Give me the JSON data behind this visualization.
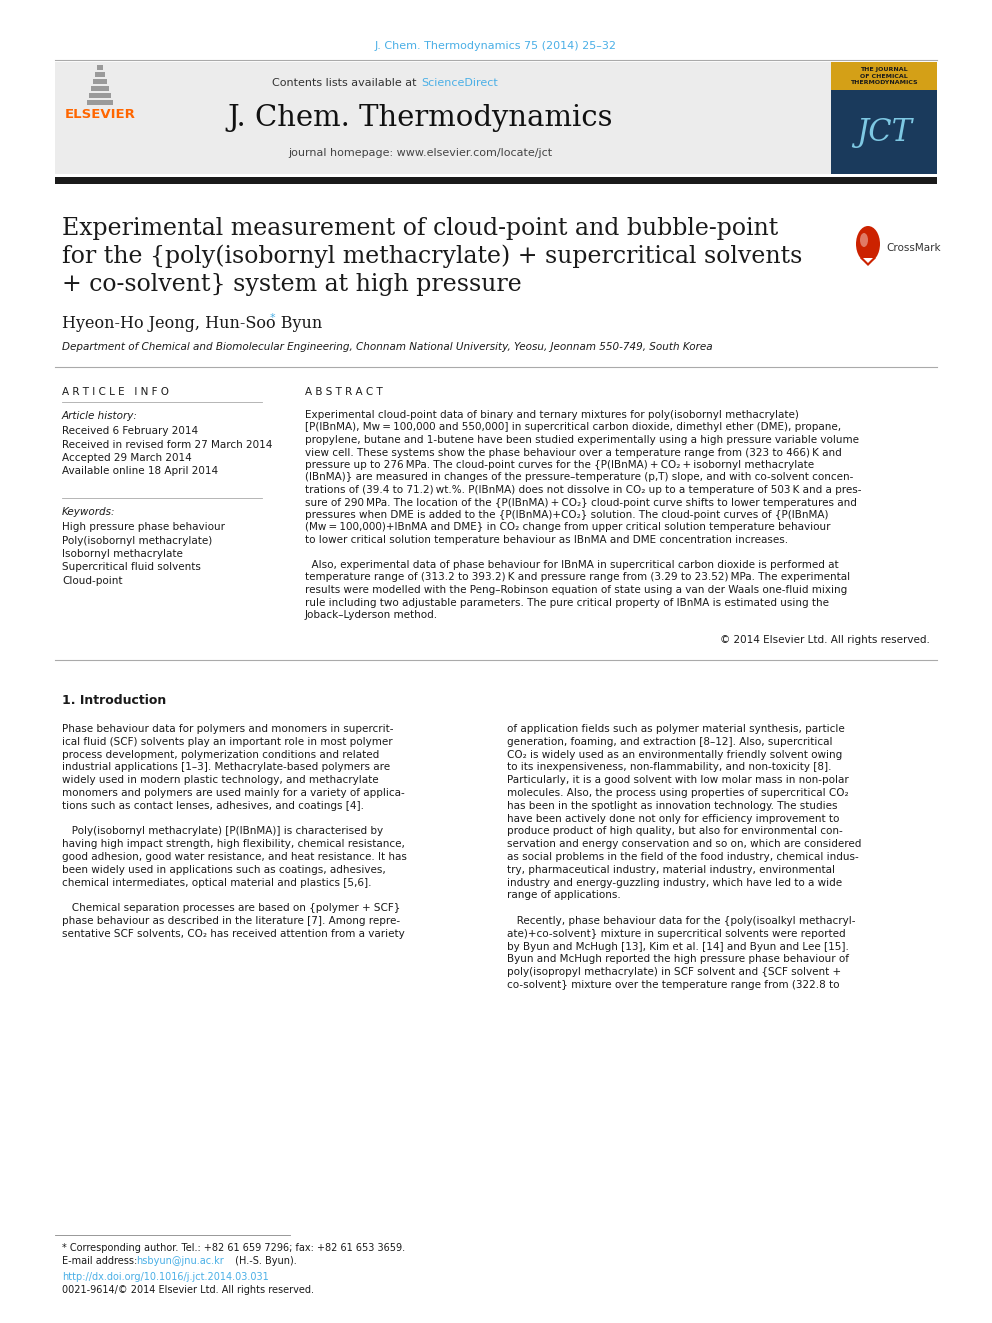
{
  "journal_ref": "J. Chem. Thermodynamics 75 (2014) 25–32",
  "journal_name": "J. Chem. Thermodynamics",
  "contents_text": "Contents lists available at ",
  "sciencedirect": "ScienceDirect",
  "homepage_text": "journal homepage: www.elsevier.com/locate/jct",
  "title_line1": "Experimental measurement of cloud-point and bubble-point",
  "title_line2": "for the {poly(isobornyl methacrylate) + supercritical solvents",
  "title_line3": "+ co-solvent} system at high pressure",
  "authors": "Hyeon-Ho Jeong, Hun-Soo Byun",
  "authors_star": "*",
  "affiliation": "Department of Chemical and Biomolecular Engineering, Chonnam National University, Yeosu, Jeonnam 550-749, South Korea",
  "article_info_header": "A R T I C L E   I N F O",
  "abstract_header": "A B S T R A C T",
  "article_history_label": "Article history:",
  "received1": "Received 6 February 2014",
  "received2": "Received in revised form 27 March 2014",
  "accepted": "Accepted 29 March 2014",
  "available": "Available online 18 April 2014",
  "keywords_label": "Keywords:",
  "kw1": "High pressure phase behaviour",
  "kw2": "Poly(isobornyl methacrylate)",
  "kw3": "Isobornyl methacrylate",
  "kw4": "Supercritical fluid solvents",
  "kw5": "Cloud-point",
  "abstract_text": "Experimental cloud-point data of binary and ternary mixtures for poly(isobornyl methacrylate) [P(IBnMA), Mw = 100,000 and 550,000] in supercritical carbon dioxide, dimethyl ether (DME), propane, propylene, butane and 1-butene have been studied experimentally using a high pressure variable volume view cell. These systems show the phase behaviour over a temperature range from (323 to 466) K and pressure up to 276 MPa. The cloud-point curves for the {P(IBnMA) + CO₂ + isobornyl methacrylate (IBnMA)} are measured in changes of the pressure–temperature (p,T) slope, and with co-solvent concentrations of (39.4 to 71.2) wt.%. P(IBnMA) does not dissolve in CO₂ up to a temperature of 503 K and a pressure of 290 MPa. The location of the {P(IBnMA) + CO₂} cloud-point curve shifts to lower temperatures and pressures when DME is added to the {P(IBnMA)+CO₂} solution. The cloud-point curves of {P(IBnMA) (Mw = 100,000)+IBnMA and DME} in CO₂ change from upper critical solution temperature behaviour to lower critical solution temperature behaviour as IBnMA and DME concentration increases.",
  "abstract_text2": "  Also, experimental data of phase behaviour for IBnMA in supercritical carbon dioxide is performed at temperature range of (313.2 to 393.2) K and pressure range from (3.29 to 23.52) MPa. The experimental results were modelled with the Peng–Robinson equation of state using a van der Waals one-fluid mixing rule including two adjustable parameters. The pure critical property of IBnMA is estimated using the Joback–Lyderson method.",
  "copyright": "© 2014 Elsevier Ltd. All rights reserved.",
  "intro_header": "1. Introduction",
  "intro_lines_left": [
    "Phase behaviour data for polymers and monomers in supercrit-",
    "ical fluid (SCF) solvents play an important role in most polymer",
    "process development, polymerization conditions and related",
    "industrial applications [1–3]. Methacrylate-based polymers are",
    "widely used in modern plastic technology, and methacrylate",
    "monomers and polymers are used mainly for a variety of applica-",
    "tions such as contact lenses, adhesives, and coatings [4].",
    "",
    "   Poly(isobornyl methacrylate) [P(IBnMA)] is characterised by",
    "having high impact strength, high flexibility, chemical resistance,",
    "good adhesion, good water resistance, and heat resistance. It has",
    "been widely used in applications such as coatings, adhesives,",
    "chemical intermediates, optical material and plastics [5,6].",
    "",
    "   Chemical separation processes are based on {polymer + SCF}",
    "phase behaviour as described in the literature [7]. Among repre-",
    "sentative SCF solvents, CO₂ has received attention from a variety"
  ],
  "intro_lines_right": [
    "of application fields such as polymer material synthesis, particle",
    "generation, foaming, and extraction [8–12]. Also, supercritical",
    "CO₂ is widely used as an environmentally friendly solvent owing",
    "to its inexpensiveness, non-flammability, and non-toxicity [8].",
    "Particularly, it is a good solvent with low molar mass in non-polar",
    "molecules. Also, the process using properties of supercritical CO₂",
    "has been in the spotlight as innovation technology. The studies",
    "have been actively done not only for efficiency improvement to",
    "produce product of high quality, but also for environmental con-",
    "servation and energy conservation and so on, which are considered",
    "as social problems in the field of the food industry, chemical indus-",
    "try, pharmaceutical industry, material industry, environmental",
    "industry and energy-guzzling industry, which have led to a wide",
    "range of applications.",
    "",
    "   Recently, phase behaviour data for the {poly(isoalkyl methacryl-",
    "ate)+co-solvent} mixture in supercritical solvents were reported",
    "by Byun and McHugh [13], Kim et al. [14] and Byun and Lee [15].",
    "Byun and McHugh reported the high pressure phase behaviour of",
    "poly(isopropyl methacrylate) in SCF solvent and {SCF solvent +",
    "co-solvent} mixture over the temperature range from (322.8 to"
  ],
  "footnote1": "* Corresponding author. Tel.: +82 61 659 7296; fax: +82 61 653 3659.",
  "footnote2_pre": "E-mail address: ",
  "footnote2_email": "hsbyun@jnu.ac.kr",
  "footnote2_post": " (H.-S. Byun).",
  "doi": "http://dx.doi.org/10.1016/j.jct.2014.03.031",
  "copyright2": "0021-9614/© 2014 Elsevier Ltd. All rights reserved.",
  "elsevier_color": "#FF6600",
  "link_color": "#4AAFE6",
  "header_bg": "#ECECEC",
  "thick_bar_color": "#1A1A1A",
  "title_color": "#1A1A1A",
  "body_color": "#1A1A1A"
}
